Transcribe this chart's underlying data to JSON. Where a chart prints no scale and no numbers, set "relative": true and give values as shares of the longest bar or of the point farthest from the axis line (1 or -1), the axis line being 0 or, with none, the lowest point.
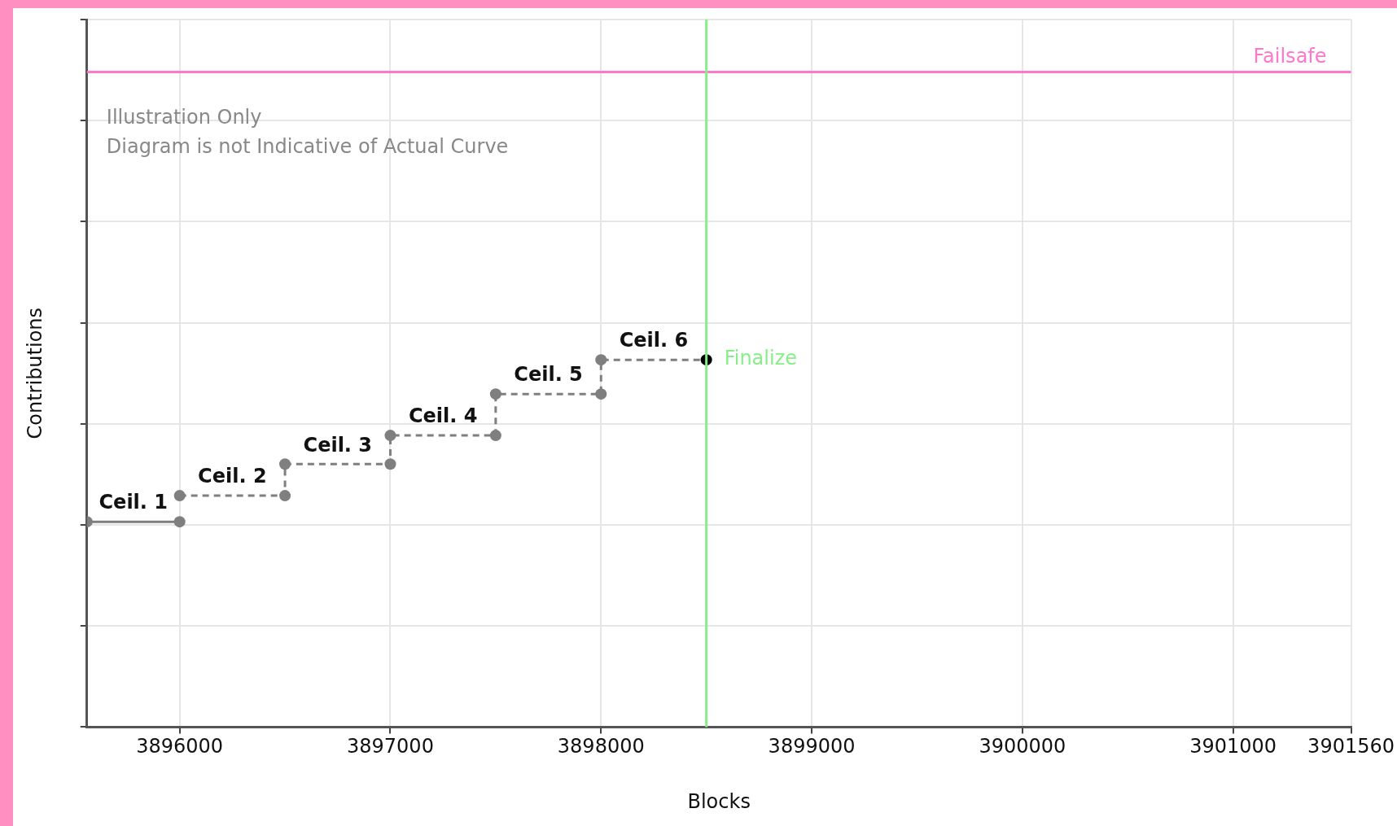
{
  "chart_data": {
    "type": "line",
    "xlabel": "Blocks",
    "ylabel": "Contributions",
    "relative": true,
    "xlim": [
      3895560,
      3901560
    ],
    "xticks": [
      3896000,
      3897000,
      3898000,
      3899000,
      3900000,
      3901000,
      3901560
    ],
    "series": [
      {
        "color": "#7f7f7f",
        "line_style": "solid",
        "marker": "circle",
        "x": [
          3895560,
          3896000
        ],
        "values": [
          0.559,
          0.559
        ]
      },
      {
        "color": "#7f7f7f",
        "colors": [
          "#7f7f7f",
          "#7f7f7f",
          "#7f7f7f",
          "#7f7f7f",
          "#7f7f7f",
          "#7f7f7f",
          "#7f7f7f",
          "#7f7f7f",
          "#7f7f7f",
          "#000000"
        ],
        "line_style": "dashed",
        "marker": "circle",
        "x": [
          3896000,
          3896500,
          3896500,
          3897000,
          3897000,
          3897500,
          3897500,
          3898000,
          3898000,
          3898500
        ],
        "values": [
          0.63,
          0.63,
          0.716,
          0.716,
          0.794,
          0.794,
          0.907,
          0.907,
          1,
          1
        ]
      }
    ],
    "ref_lines": [
      {
        "axis": "y",
        "value": 1.784,
        "label": "Failsafe",
        "color": "#ff77cc"
      },
      {
        "axis": "x",
        "value": 3898500,
        "label": "Finalize",
        "color": "#88ee88"
      }
    ],
    "annotations": [
      "Illustration Only",
      "Diagram is not Indicative of Actual Curve",
      {
        "text": "Ceil. 1",
        "x": 3895780,
        "y": 0.559
      },
      {
        "text": "Ceil. 2",
        "x": 3896250,
        "y": 0.63
      },
      {
        "text": "Ceil. 3",
        "x": 3896750,
        "y": 0.716
      },
      {
        "text": "Ceil. 4",
        "x": 3897250,
        "y": 0.794
      },
      {
        "text": "Ceil. 5",
        "x": 3897750,
        "y": 0.907
      },
      {
        "text": "Ceil. 6",
        "x": 3898250,
        "y": 1
      }
    ],
    "grid": true,
    "legend": false
  }
}
